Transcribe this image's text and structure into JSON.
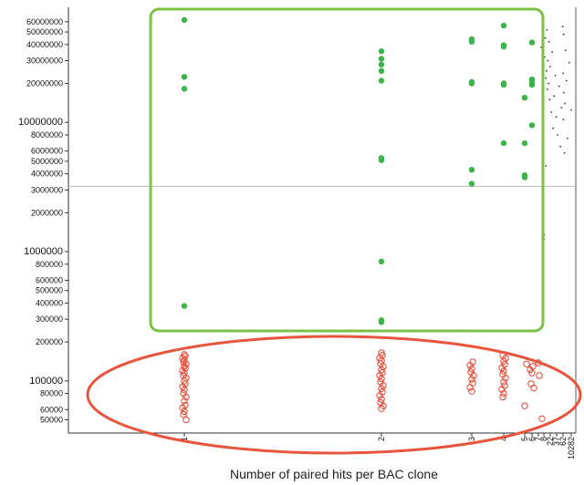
{
  "chart_data": {
    "type": "scatter",
    "xlabel": "Number of paired hits per BAC clone",
    "x_scale": "log",
    "y_scale": "log",
    "ylim": [
      45000,
      66000000
    ],
    "reference_line_y": 3200000,
    "x_tick_labels": [
      "1",
      "2",
      "3",
      "4",
      "5",
      "6",
      "7",
      "8",
      "22",
      "37",
      "62",
      "10282"
    ],
    "y_ticks": [
      {
        "value": 50000,
        "label": "50000",
        "major": false
      },
      {
        "value": 60000,
        "label": "60000",
        "major": false
      },
      {
        "value": 80000,
        "label": "80000",
        "major": false
      },
      {
        "value": 100000,
        "label": "100000",
        "major": true
      },
      {
        "value": 200000,
        "label": "200000",
        "major": false
      },
      {
        "value": 300000,
        "label": "300000",
        "major": false
      },
      {
        "value": 400000,
        "label": "400000",
        "major": false
      },
      {
        "value": 500000,
        "label": "500000",
        "major": false
      },
      {
        "value": 600000,
        "label": "600000",
        "major": false
      },
      {
        "value": 800000,
        "label": "800000",
        "major": false
      },
      {
        "value": 1000000,
        "label": "1000000",
        "major": true
      },
      {
        "value": 2000000,
        "label": "2000000",
        "major": false
      },
      {
        "value": 3000000,
        "label": "3000000",
        "major": false
      },
      {
        "value": 4000000,
        "label": "4000000",
        "major": false
      },
      {
        "value": 5000000,
        "label": "5000000",
        "major": false
      },
      {
        "value": 6000000,
        "label": "6000000",
        "major": false
      },
      {
        "value": 8000000,
        "label": "8000000",
        "major": false
      },
      {
        "value": 10000000,
        "label": "10000000",
        "major": true
      },
      {
        "value": 20000000,
        "label": "20000000",
        "major": false
      },
      {
        "value": 30000000,
        "label": "30000000",
        "major": false
      },
      {
        "value": 40000000,
        "label": "40000000",
        "major": false
      },
      {
        "value": 50000000,
        "label": "50000000",
        "major": false
      },
      {
        "value": 60000000,
        "label": "60000000",
        "major": false
      }
    ],
    "series": [
      {
        "color": "#3bb54a",
        "marker": "filled-circle",
        "points": [
          {
            "x": 1,
            "y": 62000000
          },
          {
            "x": 1,
            "y": 22500000
          },
          {
            "x": 1,
            "y": 18200000
          },
          {
            "x": 1,
            "y": 380000
          },
          {
            "x": 2,
            "y": 35500000
          },
          {
            "x": 2,
            "y": 31000000
          },
          {
            "x": 2,
            "y": 28000000
          },
          {
            "x": 2,
            "y": 25000000
          },
          {
            "x": 2,
            "y": 21000000
          },
          {
            "x": 2,
            "y": 5300000
          },
          {
            "x": 2,
            "y": 5100000
          },
          {
            "x": 2,
            "y": 840000
          },
          {
            "x": 2,
            "y": 295000
          },
          {
            "x": 2,
            "y": 285000
          },
          {
            "x": 3,
            "y": 44000000
          },
          {
            "x": 3,
            "y": 42000000
          },
          {
            "x": 3,
            "y": 20500000
          },
          {
            "x": 3,
            "y": 20000000
          },
          {
            "x": 3,
            "y": 4300000
          },
          {
            "x": 3,
            "y": 3350000
          },
          {
            "x": 4,
            "y": 56000000
          },
          {
            "x": 4,
            "y": 39500000
          },
          {
            "x": 4,
            "y": 38500000
          },
          {
            "x": 4,
            "y": 20000000
          },
          {
            "x": 4,
            "y": 19500000
          },
          {
            "x": 4,
            "y": 6900000
          },
          {
            "x": 5,
            "y": 15500000
          },
          {
            "x": 5,
            "y": 6900000
          },
          {
            "x": 5,
            "y": 3900000
          },
          {
            "x": 5,
            "y": 3750000
          },
          {
            "x": 6,
            "y": 41500000
          },
          {
            "x": 6,
            "y": 21500000
          },
          {
            "x": 6,
            "y": 20500000
          },
          {
            "x": 6,
            "y": 19500000
          },
          {
            "x": 6,
            "y": 9500000
          }
        ]
      },
      {
        "color": "#e8432e",
        "marker": "open-circle",
        "points": [
          {
            "x": 1,
            "y": 160000
          },
          {
            "x": 1,
            "y": 155000
          },
          {
            "x": 1,
            "y": 150000
          },
          {
            "x": 1,
            "y": 145000
          },
          {
            "x": 1,
            "y": 140000
          },
          {
            "x": 1,
            "y": 135000
          },
          {
            "x": 1,
            "y": 130000
          },
          {
            "x": 1,
            "y": 125000
          },
          {
            "x": 1,
            "y": 120000
          },
          {
            "x": 1,
            "y": 115000
          },
          {
            "x": 1,
            "y": 110000
          },
          {
            "x": 1,
            "y": 105000
          },
          {
            "x": 1,
            "y": 100000
          },
          {
            "x": 1,
            "y": 95000
          },
          {
            "x": 1,
            "y": 90000
          },
          {
            "x": 1,
            "y": 85000
          },
          {
            "x": 1,
            "y": 80000
          },
          {
            "x": 1,
            "y": 75000
          },
          {
            "x": 1,
            "y": 70000
          },
          {
            "x": 1,
            "y": 65000
          },
          {
            "x": 1,
            "y": 62000
          },
          {
            "x": 1,
            "y": 58000
          },
          {
            "x": 1,
            "y": 55000
          },
          {
            "x": 1,
            "y": 50000
          },
          {
            "x": 2,
            "y": 165000
          },
          {
            "x": 2,
            "y": 158000
          },
          {
            "x": 2,
            "y": 150000
          },
          {
            "x": 2,
            "y": 143000
          },
          {
            "x": 2,
            "y": 136000
          },
          {
            "x": 2,
            "y": 129000
          },
          {
            "x": 2,
            "y": 122000
          },
          {
            "x": 2,
            "y": 116000
          },
          {
            "x": 2,
            "y": 110000
          },
          {
            "x": 2,
            "y": 104000
          },
          {
            "x": 2,
            "y": 98000
          },
          {
            "x": 2,
            "y": 92000
          },
          {
            "x": 2,
            "y": 87000
          },
          {
            "x": 2,
            "y": 82000
          },
          {
            "x": 2,
            "y": 77000
          },
          {
            "x": 2,
            "y": 72000
          },
          {
            "x": 2,
            "y": 68000
          },
          {
            "x": 2,
            "y": 64000
          },
          {
            "x": 2,
            "y": 61000
          },
          {
            "x": 3,
            "y": 140000
          },
          {
            "x": 3,
            "y": 132000
          },
          {
            "x": 3,
            "y": 124000
          },
          {
            "x": 3,
            "y": 117000
          },
          {
            "x": 3,
            "y": 110000
          },
          {
            "x": 3,
            "y": 103000
          },
          {
            "x": 3,
            "y": 96000
          },
          {
            "x": 3,
            "y": 89000
          },
          {
            "x": 3,
            "y": 83000
          },
          {
            "x": 4,
            "y": 158000
          },
          {
            "x": 4,
            "y": 150000
          },
          {
            "x": 4,
            "y": 142000
          },
          {
            "x": 4,
            "y": 134000
          },
          {
            "x": 4,
            "y": 126000
          },
          {
            "x": 4,
            "y": 119000
          },
          {
            "x": 4,
            "y": 112000
          },
          {
            "x": 4,
            "y": 105000
          },
          {
            "x": 4,
            "y": 98000
          },
          {
            "x": 4,
            "y": 92000
          },
          {
            "x": 4,
            "y": 86000
          },
          {
            "x": 4,
            "y": 80000
          },
          {
            "x": 4,
            "y": 75000
          },
          {
            "x": 5,
            "y": 135000
          },
          {
            "x": 5,
            "y": 64000
          },
          {
            "x": 6,
            "y": 130000
          },
          {
            "x": 6,
            "y": 122000
          },
          {
            "x": 6,
            "y": 115000
          },
          {
            "x": 6,
            "y": 95000
          },
          {
            "x": 6,
            "y": 88000
          },
          {
            "x": 7,
            "y": 138000
          },
          {
            "x": 7,
            "y": 110000
          },
          {
            "x": 8,
            "y": 51000
          }
        ]
      },
      {
        "color": "#333333",
        "marker": "small-dot",
        "points": [
          {
            "x": 7.5,
            "y": 38000000
          },
          {
            "x": 8,
            "y": 28000000
          },
          {
            "x": 9,
            "y": 32000000
          },
          {
            "x": 10,
            "y": 45000000
          },
          {
            "x": 11,
            "y": 22000000
          },
          {
            "x": 12,
            "y": 25000000
          },
          {
            "x": 13,
            "y": 52000000
          },
          {
            "x": 14,
            "y": 18000000
          },
          {
            "x": 15,
            "y": 30000000
          },
          {
            "x": 17,
            "y": 20000000
          },
          {
            "x": 18,
            "y": 42000000
          },
          {
            "x": 20,
            "y": 15000000
          },
          {
            "x": 22,
            "y": 27000000
          },
          {
            "x": 24,
            "y": 12000000
          },
          {
            "x": 26,
            "y": 35000000
          },
          {
            "x": 28,
            "y": 9000000
          },
          {
            "x": 30,
            "y": 16000000
          },
          {
            "x": 33,
            "y": 23000000
          },
          {
            "x": 36,
            "y": 11000000
          },
          {
            "x": 40,
            "y": 8000000
          },
          {
            "x": 45,
            "y": 19000000
          },
          {
            "x": 50,
            "y": 6500000
          },
          {
            "x": 55,
            "y": 13000000
          },
          {
            "x": 60,
            "y": 55000000
          },
          {
            "x": 70,
            "y": 24000000
          },
          {
            "x": 80,
            "y": 10500000
          },
          {
            "x": 90,
            "y": 48000000
          },
          {
            "x": 100,
            "y": 17000000
          },
          {
            "x": 150,
            "y": 5800000
          },
          {
            "x": 200,
            "y": 14000000
          },
          {
            "x": 300,
            "y": 36000000
          },
          {
            "x": 500,
            "y": 21000000
          },
          {
            "x": 1000,
            "y": 7500000
          },
          {
            "x": 3000,
            "y": 29000000
          },
          {
            "x": 10282,
            "y": 12500000
          },
          {
            "x": 11,
            "y": 4600000
          },
          {
            "x": 8.5,
            "y": 1350000
          },
          {
            "x": 8.2,
            "y": 1250000
          }
        ]
      }
    ],
    "annotations": [
      {
        "shape": "rounded-rectangle",
        "color": "#7bc143",
        "encloses": "green series"
      },
      {
        "shape": "ellipse",
        "color": "#e8543c",
        "encloses": "red series"
      }
    ]
  }
}
